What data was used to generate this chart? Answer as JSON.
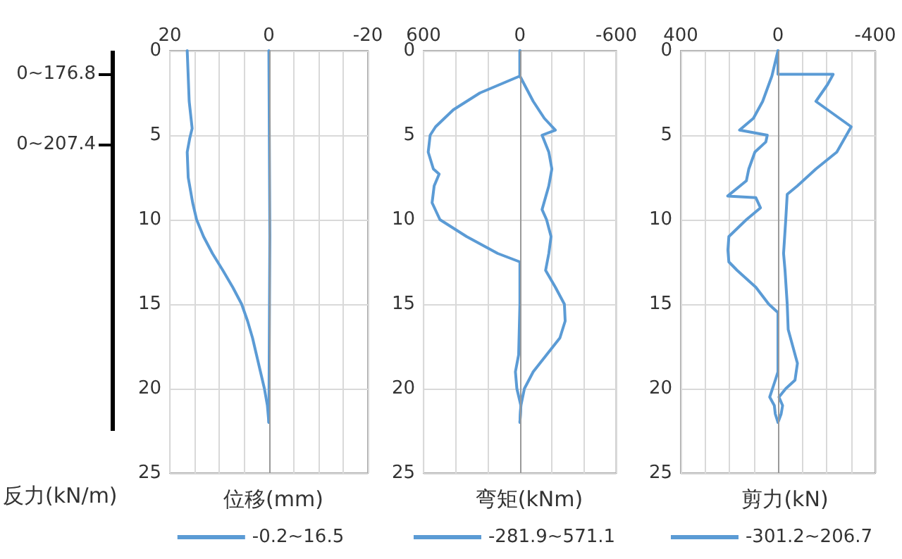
{
  "chart_data": [
    {
      "type": "other",
      "xlabel": "反力(kN/m)",
      "annotations": [
        "0~176.8",
        "0~207.4"
      ]
    },
    {
      "type": "line",
      "xlabel": "位移(mm)",
      "xlim": [
        20,
        -20
      ],
      "xticks": [
        20,
        {
          "value": 15,
          "label": null
        },
        {
          "value": 10,
          "label": null
        },
        {
          "value": 5,
          "label": null
        },
        0,
        {
          "value": -5,
          "label": null
        },
        {
          "value": -10,
          "label": null
        },
        {
          "value": -15,
          "label": null
        },
        -20
      ],
      "ylim": [
        25,
        0
      ],
      "yticks": [
        0,
        5,
        10,
        15,
        20,
        25
      ],
      "grid": true,
      "legend": "bottom",
      "marker": "none",
      "line_style": "solid",
      "ref_lines": [
        {
          "axis": "x",
          "value": 0,
          "color": "#999999"
        }
      ],
      "series": [
        {
          "name": "-0.2~16.5",
          "color": "#5b9bd5",
          "x": [
            16.5,
            16.1,
            15.5,
            16.0,
            16.5,
            16.3,
            15.4,
            14.6,
            13.2,
            11.4,
            9.3,
            7.3,
            5.5,
            4.3,
            3.3,
            2.5,
            1.7,
            0.9,
            0.3,
            0
          ],
          "values": [
            0,
            3,
            4.6,
            5.2,
            6,
            7.5,
            9,
            10,
            11,
            12,
            13,
            14,
            15,
            16,
            17,
            18,
            19,
            20,
            21,
            22
          ]
        },
        {
          "color": "#5b9bd5",
          "x": [
            0,
            -0.2,
            0
          ],
          "values": [
            0,
            11,
            22
          ]
        }
      ]
    },
    {
      "type": "line",
      "xlabel": "弯矩(kNm)",
      "xlim": [
        600,
        -600
      ],
      "xticks": [
        600,
        {
          "value": 400,
          "label": null
        },
        {
          "value": 200,
          "label": null
        },
        0,
        {
          "value": -200,
          "label": null
        },
        {
          "value": -400,
          "label": null
        },
        -600
      ],
      "ylim": [
        25,
        0
      ],
      "yticks": [
        0,
        5,
        10,
        15,
        20,
        25
      ],
      "grid": true,
      "legend": "bottom",
      "marker": "none",
      "line_style": "solid",
      "ref_lines": [
        {
          "axis": "x",
          "value": 0,
          "color": "#999999"
        }
      ],
      "series": [
        {
          "name": "-281.9~571.1",
          "color": "#5b9bd5",
          "x": [
            0,
            0,
            249,
            415,
            525,
            559,
            571.1,
            539,
            503,
            534,
            547,
            498,
            332,
            138,
            0,
            0,
            8,
            28,
            19,
            -6,
            0
          ],
          "values": [
            0,
            1.5,
            2.5,
            3.5,
            4.5,
            5,
            6,
            7,
            7.3,
            8,
            9,
            10,
            11,
            12,
            12.5,
            15,
            18,
            19,
            20,
            21,
            22
          ]
        },
        {
          "color": "#5b9bd5",
          "x": [
            0,
            0,
            -83,
            -152,
            -221,
            -138,
            -180,
            -199,
            -180,
            -138,
            -166,
            -194,
            -180,
            -160,
            -221,
            -277,
            -281.9,
            -249,
            -166,
            -83,
            -28,
            -6,
            0
          ],
          "values": [
            0,
            1.5,
            3,
            4,
            4.7,
            5,
            6,
            7,
            8,
            9.4,
            10,
            11,
            12,
            13,
            14,
            15,
            16,
            17,
            18,
            19,
            20,
            21,
            22
          ]
        }
      ]
    },
    {
      "type": "line",
      "xlabel": "剪力(kN)",
      "xlim": [
        400,
        -400
      ],
      "xticks": [
        400,
        {
          "value": 300,
          "label": null
        },
        {
          "value": 200,
          "label": null
        },
        {
          "value": 100,
          "label": null
        },
        0,
        {
          "value": -100,
          "label": null
        },
        {
          "value": -200,
          "label": null
        },
        {
          "value": -300,
          "label": null
        },
        -400
      ],
      "ylim": [
        25,
        0
      ],
      "yticks": [
        0,
        5,
        10,
        15,
        20,
        25
      ],
      "grid": true,
      "legend": "bottom",
      "marker": "none",
      "line_style": "solid",
      "ref_lines": [
        {
          "axis": "x",
          "value": 0,
          "color": "#999999"
        }
      ],
      "series": [
        {
          "name": "-301.2~206.7",
          "color": "#5b9bd5",
          "x": [
            0,
            25,
            63,
            101,
            158,
            44,
            50,
            95,
            120,
            130,
            206.7,
            91,
            72,
            130,
            202,
            206,
            202,
            168,
            91,
            38,
            0,
            0,
            11,
            34,
            15,
            11,
            0
          ],
          "values": [
            0,
            1.5,
            3,
            4,
            4.7,
            5,
            5.4,
            6,
            7,
            7.7,
            8.6,
            8.7,
            9.3,
            10,
            11,
            11.8,
            12.5,
            13,
            14,
            15,
            15.5,
            19,
            19.5,
            20.5,
            21,
            21.5,
            22
          ]
        },
        {
          "color": "#5b9bd5",
          "x": [
            0,
            0,
            -227,
            -204,
            -156,
            -301.2,
            -242,
            -156,
            -80,
            -38,
            -32,
            -23,
            -29,
            -38,
            -42,
            -61,
            -80,
            -70,
            -32,
            -4,
            -19,
            -13,
            0
          ],
          "values": [
            0,
            1.4,
            1.4,
            2,
            3,
            4.5,
            6,
            7,
            8,
            8.5,
            10,
            12,
            13,
            15,
            16.5,
            17.5,
            18.5,
            19.5,
            20,
            20.5,
            21,
            21.5,
            22
          ]
        }
      ]
    }
  ]
}
